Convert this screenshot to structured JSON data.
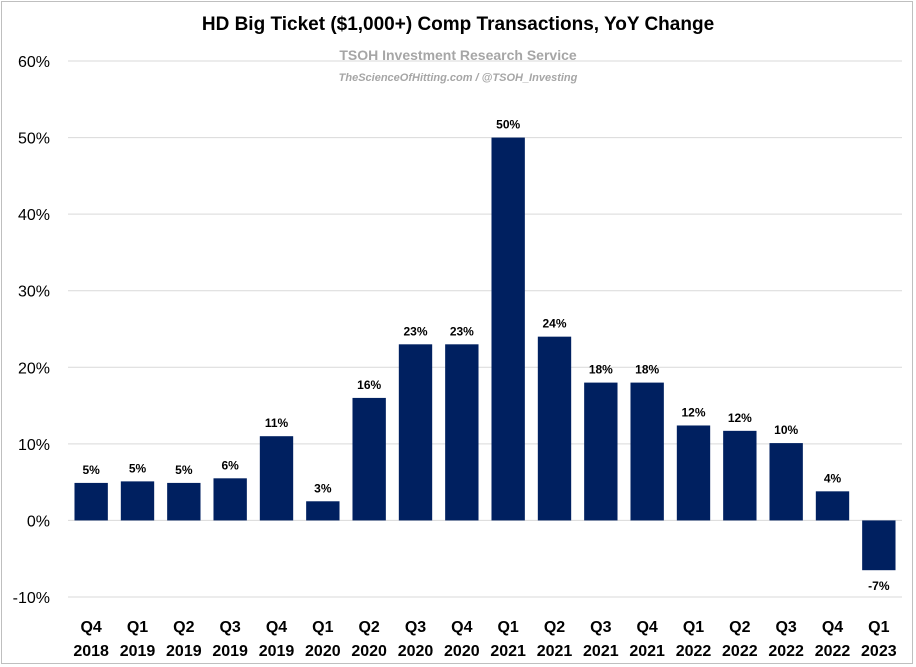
{
  "chart_data": {
    "type": "bar",
    "title": "HD Big Ticket ($1,000+) Comp Transactions, YoY Change",
    "subtitle": "TSOH Investment Research Service",
    "source": "TheScienceOfHitting.com / @TSOH_Investing",
    "categories": [
      [
        "Q4",
        "2018"
      ],
      [
        "Q1",
        "2019"
      ],
      [
        "Q2",
        "2019"
      ],
      [
        "Q3",
        "2019"
      ],
      [
        "Q4",
        "2019"
      ],
      [
        "Q1",
        "2020"
      ],
      [
        "Q2",
        "2020"
      ],
      [
        "Q3",
        "2020"
      ],
      [
        "Q4",
        "2020"
      ],
      [
        "Q1",
        "2021"
      ],
      [
        "Q2",
        "2021"
      ],
      [
        "Q3",
        "2021"
      ],
      [
        "Q4",
        "2021"
      ],
      [
        "Q1",
        "2022"
      ],
      [
        "Q2",
        "2022"
      ],
      [
        "Q3",
        "2022"
      ],
      [
        "Q4",
        "2022"
      ],
      [
        "Q1",
        "2023"
      ]
    ],
    "values": [
      4.9,
      5.1,
      4.9,
      5.5,
      11.0,
      2.5,
      16.0,
      23.0,
      23.0,
      50.0,
      24.0,
      18.0,
      18.0,
      12.4,
      11.7,
      10.1,
      3.8,
      -6.5
    ],
    "data_labels": [
      "5%",
      "5%",
      "5%",
      "6%",
      "11%",
      "3%",
      "16%",
      "23%",
      "23%",
      "50%",
      "24%",
      "18%",
      "18%",
      "12%",
      "12%",
      "10%",
      "4%",
      "-7%"
    ],
    "ylim": [
      -10,
      60
    ],
    "yticks": [
      -10,
      0,
      10,
      20,
      30,
      40,
      50,
      60
    ],
    "ytick_labels": [
      "-10%",
      "0%",
      "10%",
      "20%",
      "30%",
      "40%",
      "50%",
      "60%"
    ],
    "xlabel": "",
    "ylabel": "",
    "grid": true,
    "bar_color": "#002060"
  }
}
